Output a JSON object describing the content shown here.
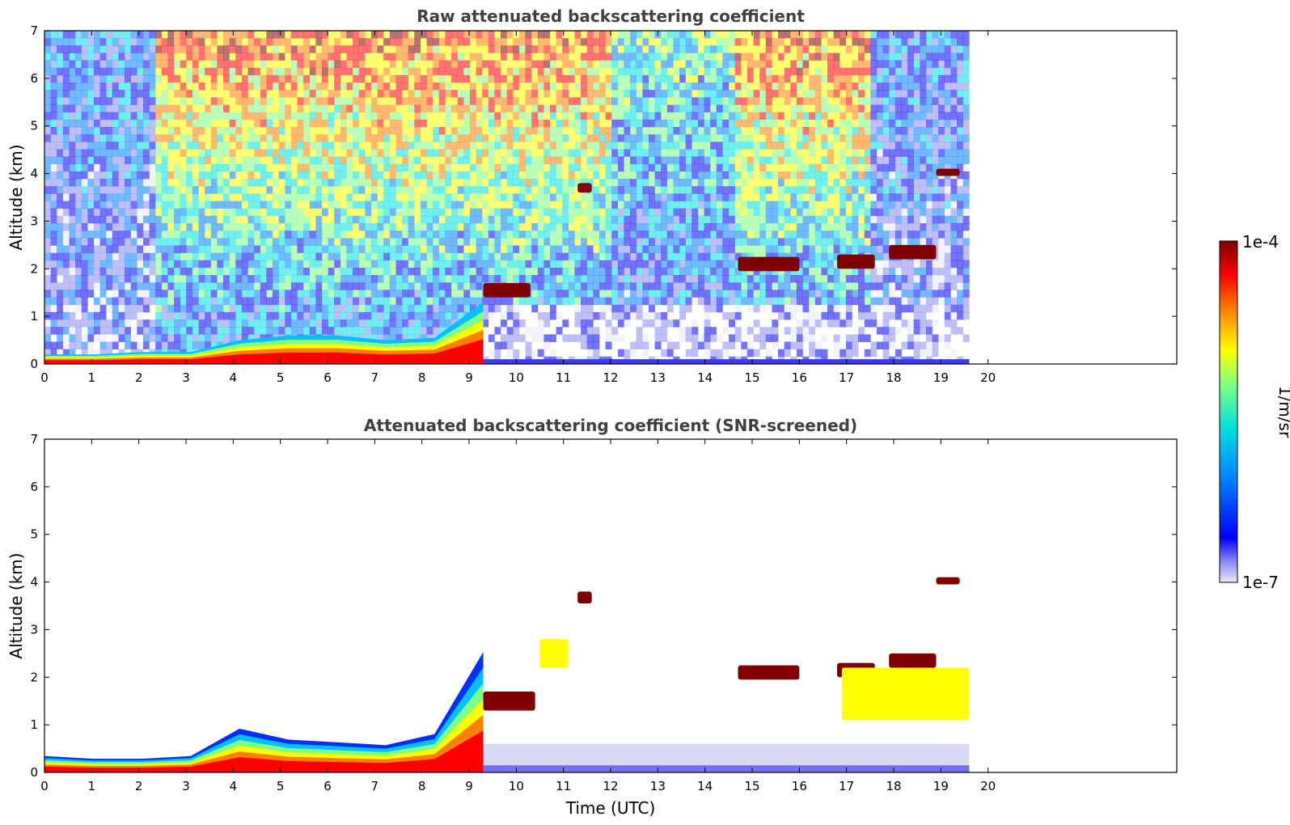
{
  "chart_data": [
    {
      "type": "heatmap",
      "title": "Raw attenuated backscattering coefficient",
      "xlabel": "",
      "ylabel": "Altitude (km)",
      "xlim": [
        0,
        24
      ],
      "ylim": [
        0,
        7
      ],
      "x_ticks": [
        "0",
        "1",
        "2",
        "3",
        "4",
        "5",
        "6",
        "7",
        "8",
        "9",
        "10",
        "11",
        "12",
        "13",
        "14",
        "15",
        "16",
        "17",
        "18",
        "19",
        "20"
      ],
      "y_ticks": [
        "0",
        "1",
        "2",
        "3",
        "4",
        "5",
        "6",
        "7"
      ],
      "data_end_time": 19.6,
      "layers": [
        {
          "feature": "boundary layer",
          "t_start": 0,
          "t_end": 9.3,
          "alt_top": [
            0.2,
            0.2,
            0.25,
            0.25,
            0.5,
            0.6,
            0.6,
            0.5,
            0.55,
            1.3
          ],
          "intensity": "high"
        },
        {
          "feature": "aerosol layer",
          "t_start": 9.3,
          "t_end": 10.3,
          "alt_bottom": 1.4,
          "alt_top": 1.7,
          "intensity": "max"
        },
        {
          "feature": "cloud",
          "t_start": 11.3,
          "t_end": 11.6,
          "alt_bottom": 3.6,
          "alt_top": 3.8,
          "intensity": "max"
        },
        {
          "feature": "cloud",
          "t_start": 14.7,
          "t_end": 16.0,
          "alt_bottom": 1.95,
          "alt_top": 2.25,
          "intensity": "max"
        },
        {
          "feature": "cloud",
          "t_start": 16.8,
          "t_end": 17.6,
          "alt_bottom": 2.0,
          "alt_top": 2.3,
          "intensity": "max"
        },
        {
          "feature": "cloud",
          "t_start": 17.9,
          "t_end": 18.9,
          "alt_bottom": 2.2,
          "alt_top": 2.5,
          "intensity": "max"
        },
        {
          "feature": "cloud",
          "t_start": 18.9,
          "t_end": 19.4,
          "alt_bottom": 3.95,
          "alt_top": 4.1,
          "intensity": "max"
        }
      ]
    },
    {
      "type": "heatmap",
      "title": "Attenuated backscattering coefficient (SNR-screened)",
      "xlabel": "Time (UTC)",
      "ylabel": "Altitude (km)",
      "xlim": [
        0,
        24
      ],
      "ylim": [
        0,
        7
      ],
      "x_ticks": [
        "0",
        "1",
        "2",
        "3",
        "4",
        "5",
        "6",
        "7",
        "8",
        "9",
        "10",
        "11",
        "12",
        "13",
        "14",
        "15",
        "16",
        "17",
        "18",
        "19",
        "20"
      ],
      "y_ticks": [
        "0",
        "1",
        "2",
        "3",
        "4",
        "5",
        "6",
        "7"
      ],
      "data_end_time": 19.6,
      "layers": [
        {
          "feature": "boundary layer",
          "t_start": 0,
          "t_end": 9.3,
          "alt_top": [
            0.3,
            0.25,
            0.25,
            0.3,
            0.8,
            0.6,
            0.55,
            0.5,
            0.7,
            2.2
          ],
          "intensity": "high"
        },
        {
          "feature": "aerosol layer",
          "t_start": 9.3,
          "t_end": 10.4,
          "alt_bottom": 1.3,
          "alt_top": 1.7,
          "intensity": "max"
        },
        {
          "feature": "aerosol layer",
          "t_start": 10.5,
          "t_end": 11.1,
          "alt_bottom": 2.2,
          "alt_top": 2.8,
          "intensity": "medium"
        },
        {
          "feature": "cloud",
          "t_start": 11.3,
          "t_end": 11.6,
          "alt_bottom": 3.55,
          "alt_top": 3.8,
          "intensity": "max"
        },
        {
          "feature": "cloud",
          "t_start": 14.7,
          "t_end": 16.0,
          "alt_bottom": 1.95,
          "alt_top": 2.25,
          "intensity": "max"
        },
        {
          "feature": "cloud",
          "t_start": 16.8,
          "t_end": 17.6,
          "alt_bottom": 2.0,
          "alt_top": 2.3,
          "intensity": "max"
        },
        {
          "feature": "cloud",
          "t_start": 17.9,
          "t_end": 18.9,
          "alt_bottom": 2.2,
          "alt_top": 2.5,
          "intensity": "max"
        },
        {
          "feature": "cloud",
          "t_start": 18.9,
          "t_end": 19.4,
          "alt_bottom": 3.95,
          "alt_top": 4.1,
          "intensity": "max"
        },
        {
          "feature": "virga",
          "t_start": 16.9,
          "t_end": 19.6,
          "alt_bottom": 1.1,
          "alt_top": 2.2,
          "intensity": "medium"
        }
      ]
    }
  ],
  "colorbar": {
    "max_label": "1e-4",
    "min_label": "1e-7",
    "unit_label": "1/m/sr",
    "colormap": [
      "#e8e8f8",
      "#8a8af0",
      "#0000ff",
      "#0080ff",
      "#00e0e0",
      "#80ff80",
      "#ffff00",
      "#ff8000",
      "#ff0000",
      "#800000"
    ]
  }
}
